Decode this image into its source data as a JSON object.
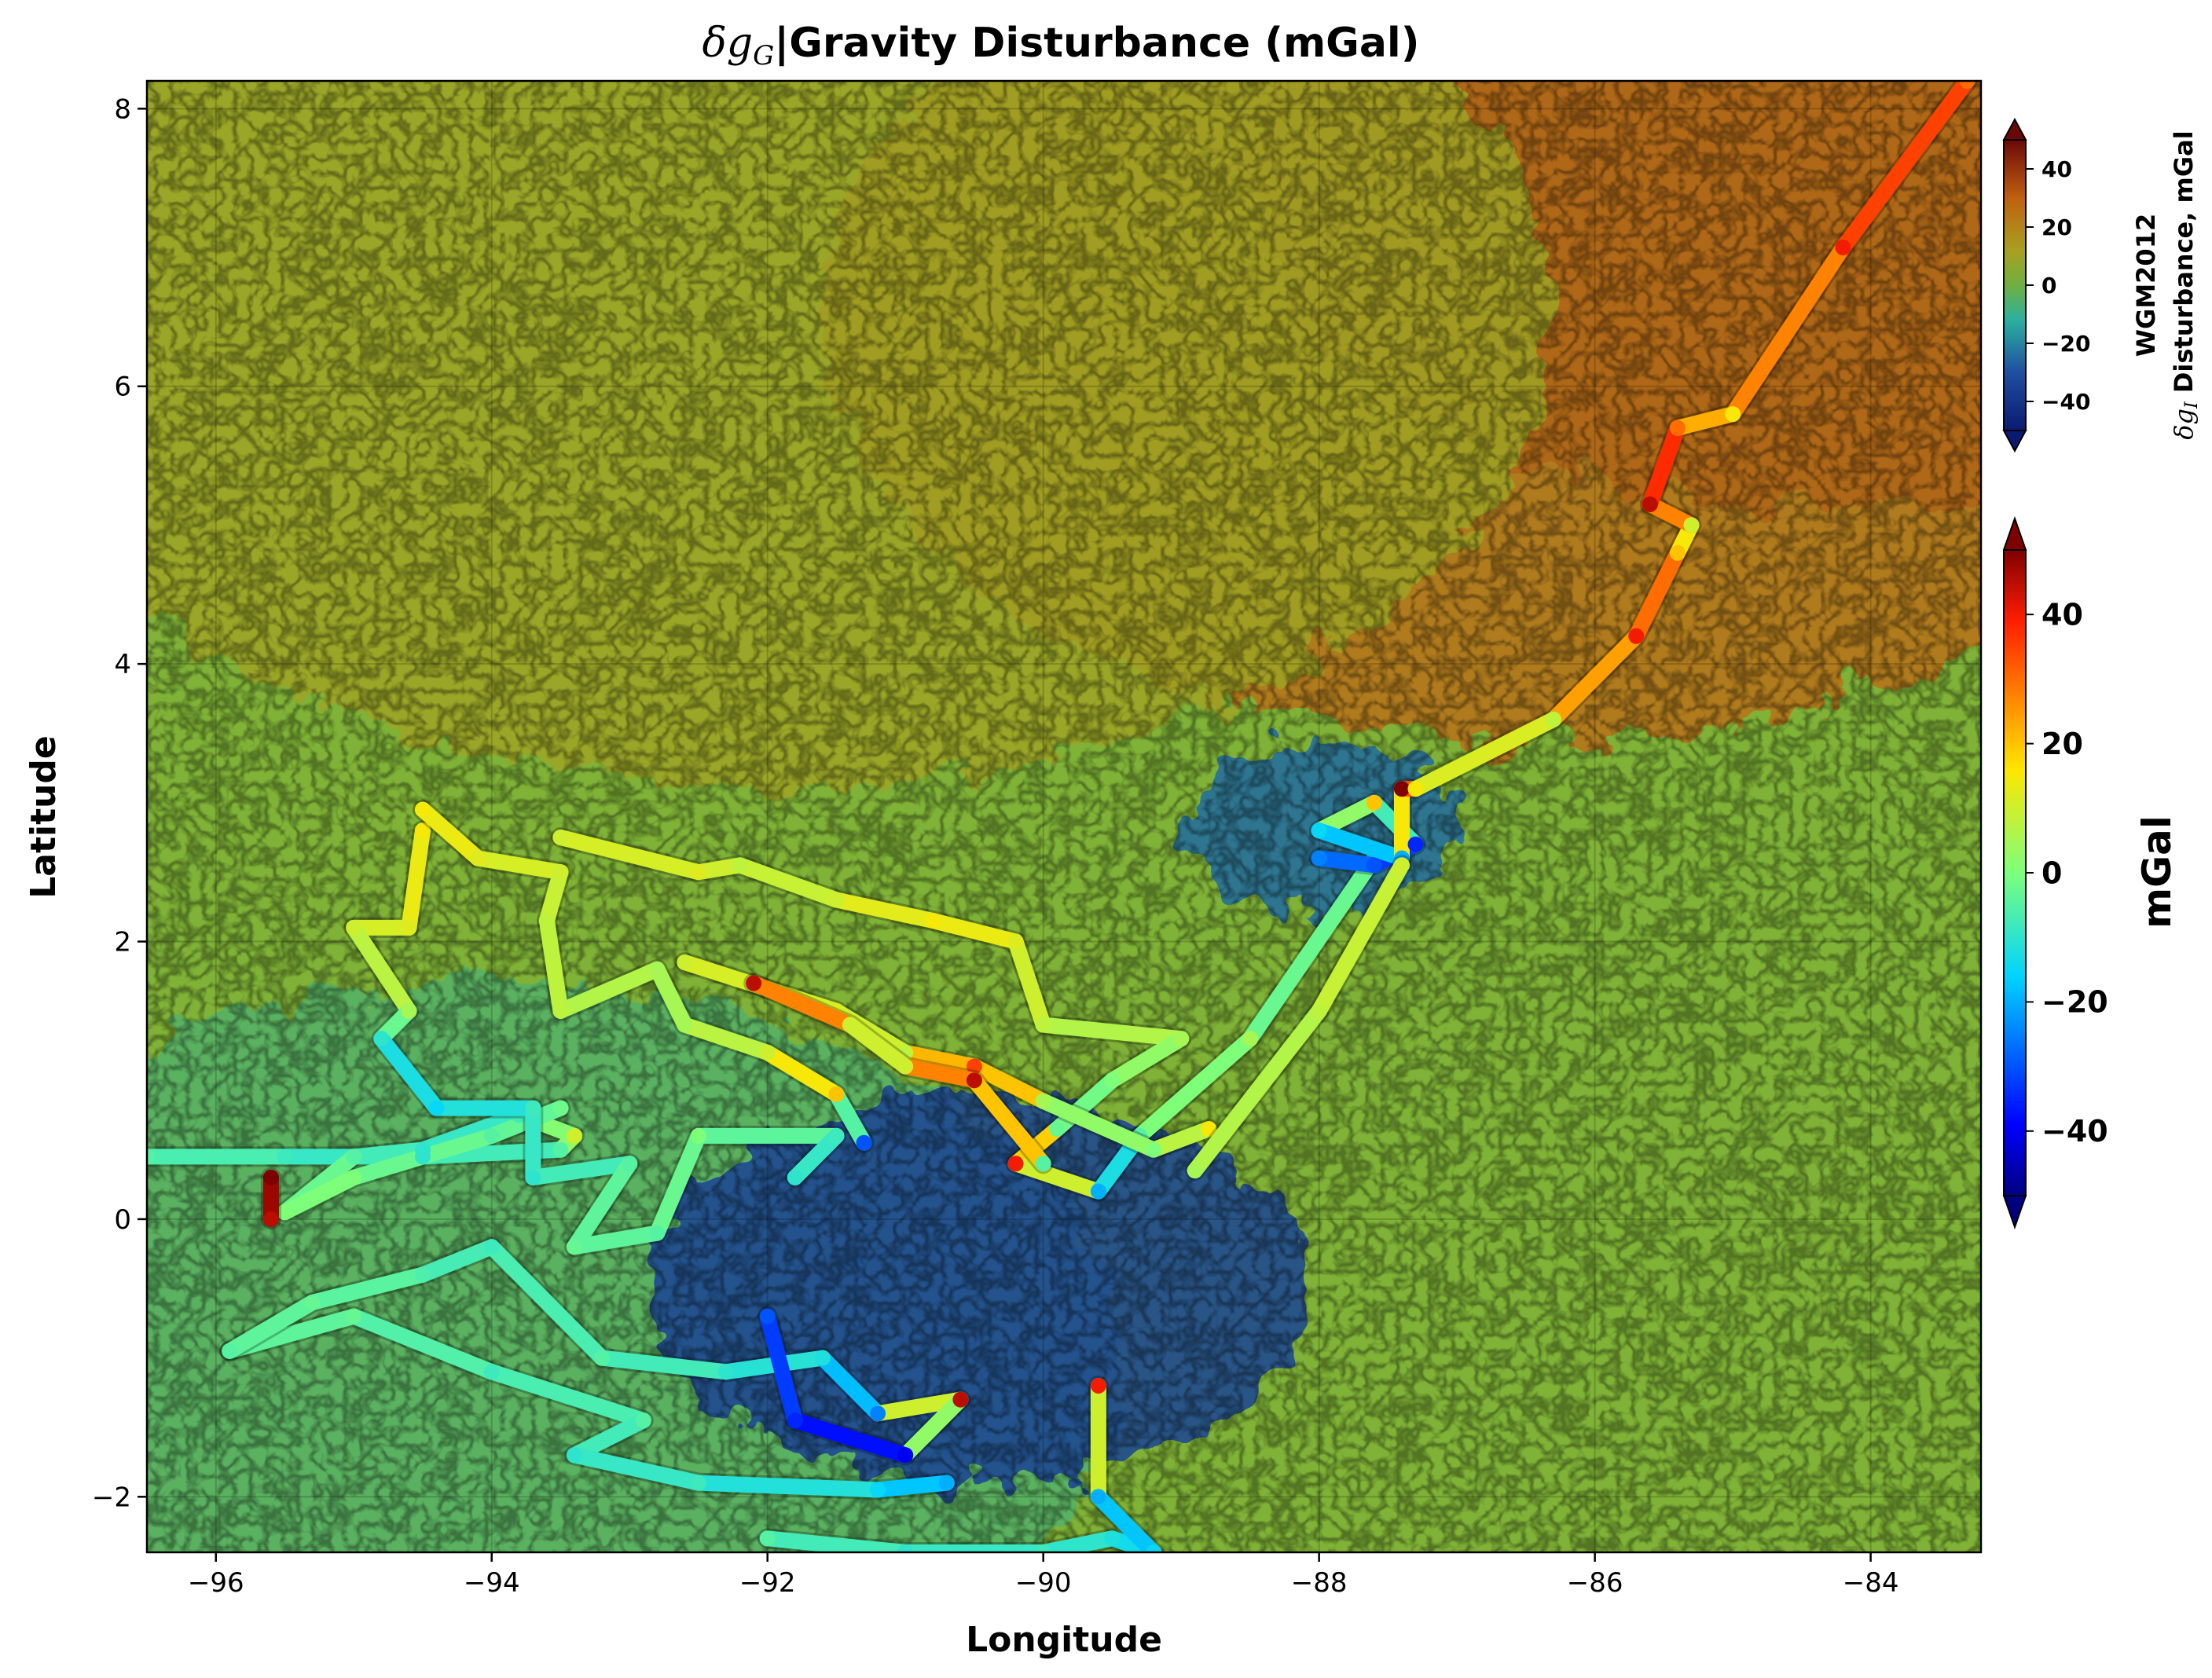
{
  "chart_data": {
    "type": "heatmap",
    "title_prefix": "δg",
    "title_subscript": "G",
    "title": "|Gravity Disturbance (mGal)",
    "xlabel": "Longitude",
    "ylabel": "Latitude",
    "xlim": [
      -96.5,
      -83.2
    ],
    "ylim": [
      -2.4,
      8.2
    ],
    "xticks": [
      -96,
      -94,
      -92,
      -90,
      -88,
      -86,
      -84
    ],
    "yticks": [
      -2,
      0,
      2,
      4,
      6,
      8
    ],
    "xtick_labels": [
      "−96",
      "−94",
      "−92",
      "−90",
      "−88",
      "−86",
      "−84"
    ],
    "ytick_labels": [
      "−2",
      "0",
      "2",
      "4",
      "6",
      "8"
    ],
    "grid": true,
    "background_field": {
      "name": "WGM2012",
      "colormap": "jet-like with alpha",
      "description_regions": [
        {
          "lon": -84.5,
          "lat": 7.5,
          "value": 45
        },
        {
          "lon": -86.5,
          "lat": 6.5,
          "value": 25
        },
        {
          "lon": -92,
          "lat": 6.5,
          "value": 10
        },
        {
          "lon": -94,
          "lat": -1,
          "value": -5
        },
        {
          "lon": -90.5,
          "lat": -0.5,
          "value": -35
        },
        {
          "lon": -88,
          "lat": 2.8,
          "value": -25
        }
      ]
    },
    "colorbars": [
      {
        "label_line1": "WGM2012",
        "label_line2_prefix": "δg",
        "label_line2_subscript": "I",
        "label_line2": " Disturbance, mGal",
        "ticks": [
          40,
          20,
          0,
          -20,
          -40
        ],
        "tick_labels": [
          "40",
          "20",
          "0",
          "−20",
          "−40"
        ],
        "range": [
          -50,
          50
        ]
      },
      {
        "label": "mGal",
        "ticks": [
          40,
          20,
          0,
          -20,
          -40
        ],
        "tick_labels": [
          "40",
          "20",
          "0",
          "−20",
          "−40"
        ],
        "range": [
          -50,
          50
        ]
      }
    ],
    "tracks": [
      {
        "points": [
          [
            -96.5,
            0.45,
            -5
          ],
          [
            -95.5,
            0.45,
            -8
          ],
          [
            -94.5,
            0.45,
            -10
          ],
          [
            -93.5,
            0.5,
            -5
          ],
          [
            -93.4,
            0.6,
            10
          ],
          [
            -93.8,
            0.75,
            -8
          ],
          [
            -94.5,
            0.5,
            -10
          ],
          [
            -95.0,
            0.45,
            -5
          ],
          [
            -95.5,
            0.05,
            0
          ],
          [
            -95.0,
            0.3,
            0
          ],
          [
            -94.0,
            0.6,
            -5
          ],
          [
            -93.5,
            0.8,
            -2
          ]
        ]
      },
      {
        "points": [
          [
            -95.6,
            0.3,
            50
          ],
          [
            -95.6,
            0.0,
            45
          ]
        ]
      },
      {
        "points": [
          [
            -95.9,
            -0.95,
            -5
          ],
          [
            -95.0,
            -0.7,
            -3
          ],
          [
            -94.0,
            -1.1,
            -8
          ],
          [
            -92.9,
            -1.45,
            -5
          ],
          [
            -93.4,
            -1.7,
            -10
          ],
          [
            -92.5,
            -1.9,
            -8
          ],
          [
            -91.2,
            -1.95,
            -15
          ],
          [
            -90.7,
            -1.9,
            -20
          ]
        ]
      },
      {
        "points": [
          [
            -95.9,
            -0.95,
            -5
          ],
          [
            -95.3,
            -0.6,
            -3
          ],
          [
            -94.5,
            -0.4,
            -6
          ],
          [
            -94.0,
            -0.2,
            -8
          ],
          [
            -93.2,
            -1.0,
            -5
          ],
          [
            -92.3,
            -1.1,
            -10
          ],
          [
            -91.6,
            -1.0,
            -12
          ],
          [
            -91.2,
            -1.4,
            -25
          ],
          [
            -90.6,
            -1.3,
            45
          ],
          [
            -91.0,
            -1.7,
            -40
          ],
          [
            -91.8,
            -1.45,
            -35
          ],
          [
            -92.0,
            -0.7,
            -30
          ]
        ]
      },
      {
        "points": [
          [
            -92.0,
            -2.3,
            -5
          ],
          [
            -91.0,
            -2.4,
            -10
          ],
          [
            -90.0,
            -2.4,
            -8
          ],
          [
            -89.5,
            -2.3,
            -12
          ],
          [
            -89.2,
            -2.4,
            -15
          ],
          [
            -89.6,
            -2.0,
            -20
          ],
          [
            -89.6,
            -1.2,
            40
          ]
        ]
      },
      {
        "points": [
          [
            -94.5,
            2.8,
            15
          ],
          [
            -94.6,
            2.1,
            12
          ],
          [
            -95.0,
            2.1,
            10
          ],
          [
            -94.6,
            1.5,
            5
          ],
          [
            -94.8,
            1.3,
            -10
          ],
          [
            -94.4,
            0.8,
            -15
          ],
          [
            -93.7,
            0.8,
            -8
          ],
          [
            -93.7,
            0.3,
            -10
          ],
          [
            -93.0,
            0.4,
            -5
          ],
          [
            -93.4,
            -0.2,
            -3
          ],
          [
            -92.8,
            -0.1,
            -5
          ],
          [
            -92.5,
            0.6,
            0
          ],
          [
            -91.5,
            0.6,
            -8
          ],
          [
            -91.8,
            0.3,
            -10
          ]
        ]
      },
      {
        "points": [
          [
            -94.5,
            2.95,
            15
          ],
          [
            -94.1,
            2.6,
            12
          ],
          [
            -93.5,
            2.5,
            10
          ],
          [
            -93.6,
            2.15,
            8
          ],
          [
            -93.5,
            1.5,
            8
          ],
          [
            -92.8,
            1.8,
            5
          ],
          [
            -92.6,
            1.4,
            5
          ],
          [
            -92.0,
            1.2,
            10
          ],
          [
            -91.5,
            0.9,
            20
          ],
          [
            -91.3,
            0.55,
            -30
          ]
        ]
      },
      {
        "points": [
          [
            -93.5,
            2.75,
            10
          ],
          [
            -92.5,
            2.5,
            12
          ],
          [
            -92.2,
            2.55,
            8
          ],
          [
            -91.5,
            2.3,
            10
          ],
          [
            -90.8,
            2.15,
            15
          ],
          [
            -90.2,
            2.0,
            12
          ],
          [
            -90.0,
            1.4,
            8
          ],
          [
            -89.0,
            1.3,
            5
          ],
          [
            -89.5,
            1.0,
            0
          ],
          [
            -89.9,
            0.65,
            -3
          ],
          [
            -90.2,
            0.4,
            40
          ],
          [
            -89.6,
            0.2,
            -20
          ],
          [
            -89.3,
            0.6,
            -5
          ],
          [
            -88.5,
            1.3,
            5
          ],
          [
            -87.6,
            2.6,
            -10
          ]
        ]
      },
      {
        "points": [
          [
            -92.6,
            1.85,
            10
          ],
          [
            -91.5,
            1.5,
            12
          ],
          [
            -91.0,
            1.2,
            8
          ],
          [
            -90.5,
            1.1,
            35
          ],
          [
            -90.0,
            0.85,
            5
          ],
          [
            -89.2,
            0.5,
            0
          ],
          [
            -88.8,
            0.65,
            15
          ]
        ]
      },
      {
        "points": [
          [
            -92.1,
            1.7,
            45
          ],
          [
            -91.4,
            1.4,
            10
          ],
          [
            -91.0,
            1.1,
            10
          ],
          [
            -90.5,
            1.0,
            45
          ],
          [
            -90.0,
            0.4,
            -5
          ]
        ]
      },
      {
        "points": [
          [
            -88.0,
            2.6,
            -25
          ],
          [
            -87.6,
            2.55,
            -30
          ],
          [
            -87.3,
            2.7,
            -35
          ],
          [
            -87.6,
            3.0,
            20
          ],
          [
            -88.0,
            2.8,
            -15
          ],
          [
            -87.4,
            2.6,
            -20
          ],
          [
            -87.4,
            3.1,
            50
          ],
          [
            -87.3,
            3.1,
            15
          ],
          [
            -86.3,
            3.6,
            8
          ],
          [
            -85.7,
            4.2,
            40
          ],
          [
            -85.4,
            4.8,
            20
          ],
          [
            -85.3,
            5.0,
            10
          ],
          [
            -85.6,
            5.15,
            45
          ],
          [
            -85.4,
            5.7,
            30
          ],
          [
            -85.0,
            5.8,
            15
          ],
          [
            -84.2,
            7.0,
            40
          ],
          [
            -83.3,
            8.2,
            30
          ]
        ]
      },
      {
        "points": [
          [
            -88.9,
            0.35,
            5
          ],
          [
            -88.0,
            1.5,
            8
          ],
          [
            -87.4,
            2.55,
            10
          ]
        ]
      }
    ]
  }
}
